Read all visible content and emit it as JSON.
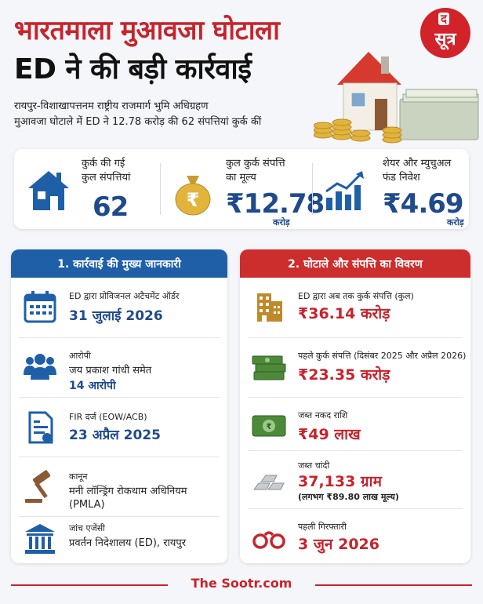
{
  "header": {
    "title_line1": "भारतमाला मुआवजा घोटाला",
    "title_line2": "ED ने की बड़ी कार्रवाई",
    "subtitle_line1": "रायपुर-विशाखापत्तनम राष्ट्रीय राजमार्ग भुमि अधिग्रहण",
    "subtitle_line2": "मुआवजा घोटाले में ED ने 12.78 करोड़ की 62 संपत्तियां कुर्क कीं"
  },
  "logo": {
    "top": "द",
    "bottom": "सूत्र"
  },
  "stats": [
    {
      "label_line1": "कुर्क की गई",
      "label_line2": "कुल संपत्तियां",
      "value": "62",
      "unit": "",
      "icon": "house-icon"
    },
    {
      "label_line1": "कुल कुर्क संपत्ति",
      "label_line2": "का मूल्य",
      "value": "₹12.78",
      "unit": "करोड़",
      "icon": "money-bag-icon"
    },
    {
      "label_line1": "शेयर और म्युचुअल",
      "label_line2": "फंड निवेश",
      "value": "₹4.69",
      "unit": "करोड़",
      "icon": "growth-chart-icon"
    }
  ],
  "left_panel": {
    "title": "1. कार्रवाई की मुख्य जानकारी",
    "rows": [
      {
        "label": "ED द्वारा प्रोविजनल अटैचमेंट ऑर्डर",
        "value": "31 जुलाई 2026",
        "icon": "calendar-icon"
      },
      {
        "label": "आरोपी",
        "detail": "जय प्रकाश गांधी समेत",
        "value": "14 आरोपी",
        "icon": "people-icon"
      },
      {
        "label": "FIR दर्ज (EOW/ACB)",
        "value": "23 अप्रैल 2025",
        "icon": "document-icon"
      },
      {
        "label": "कानून",
        "detail": "मनी लॉन्ड्रिंग रोकथाम अधिनियम",
        "detail2": "(PMLA)",
        "icon": "gavel-icon"
      },
      {
        "label": "जांच एजेंसी",
        "detail": "प्रवर्तन निदेशालय (ED), रायपुर",
        "icon": "government-building-icon"
      }
    ]
  },
  "right_panel": {
    "title": "2. घोटाले और संपत्ति का विवरण",
    "rows": [
      {
        "label": "ED द्वारा अब तक कुर्क संपत्ति (कुल)",
        "value": "₹36.14 करोड़",
        "icon": "building-icon"
      },
      {
        "label": "पहले कुर्क संपत्ति (दिसंबर 2025 और अप्रैल 2026)",
        "value": "₹23.35 करोड़",
        "icon": "cash-stack-icon"
      },
      {
        "label": "जब्त नकद राशि",
        "value": "₹49 लाख",
        "icon": "banknote-icon"
      },
      {
        "label": "जब्त चांदी",
        "value": "37,133 ग्राम",
        "note": "(लगभग ₹89.80 लाख मूल्य)",
        "icon": "silver-bars-icon"
      },
      {
        "label": "पहली गिरफ्तारी",
        "value": "3 जुन 2026",
        "icon": "handcuffs-icon"
      }
    ]
  },
  "footer": {
    "brand": "The Sootr.com"
  },
  "colors": {
    "red": "#c8232c",
    "blue": "#1f4a8c",
    "blue_header": "#1f5fa8",
    "red_header": "#cc2d2d"
  }
}
